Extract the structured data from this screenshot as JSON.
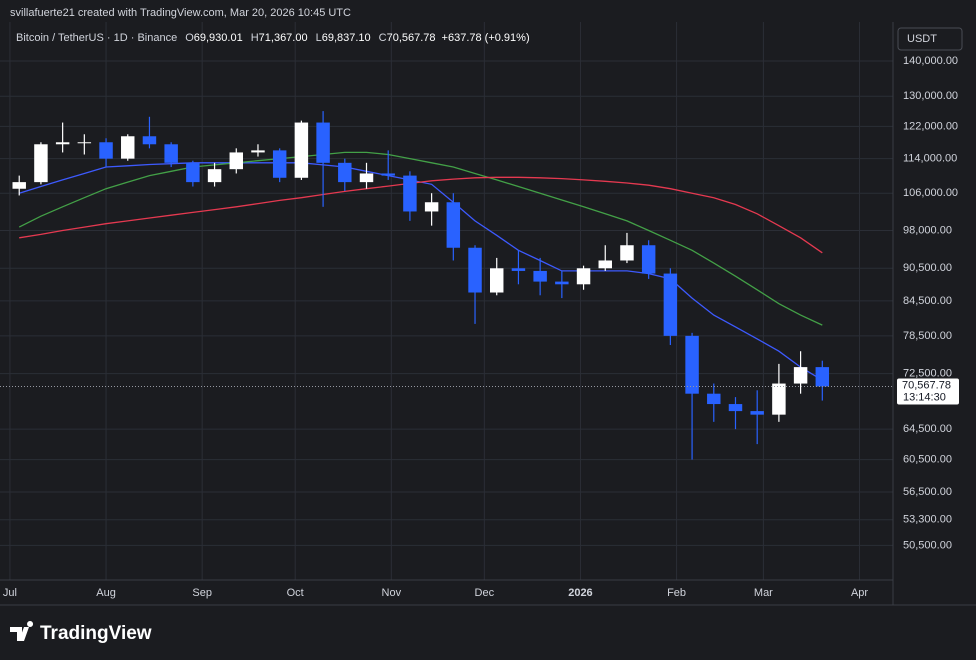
{
  "attribution": "svillafuerte21 created with TradingView.com, Mar 20, 2026 10:45 UTC",
  "brand": "TradingView",
  "chart_data": {
    "type": "candlestick",
    "title": "Bitcoin / TetherUS · 1D · Binance",
    "ohlc_header": [
      {
        "label": "O",
        "value": "69,930.01"
      },
      {
        "label": "H",
        "value": "71,367.00"
      },
      {
        "label": "L",
        "value": "69,837.10"
      },
      {
        "label": "C",
        "value": "70,567.78"
      }
    ],
    "change": "+637.78 (+0.91%)",
    "currency": "USDT",
    "countdown": "13:14:30",
    "last_price": {
      "value": 70567.78,
      "label": "70,567.78"
    },
    "log_scale": true,
    "grid": true,
    "up_color": "#ffffff",
    "down_color": "#2962ff",
    "x": [
      3,
      10,
      17,
      24,
      31,
      38,
      45,
      52,
      59,
      66,
      73,
      80,
      87,
      94,
      101,
      108,
      115,
      122,
      129,
      136,
      143,
      150,
      157,
      164,
      171,
      178,
      185,
      192,
      199,
      206,
      213,
      220,
      227,
      234,
      241,
      248,
      255,
      262
    ],
    "open": [
      107000,
      108500,
      117500,
      118000,
      118000,
      114000,
      119500,
      117500,
      113000,
      108500,
      111500,
      115500,
      116000,
      109500,
      123000,
      113000,
      108500,
      110500,
      110000,
      102000,
      104000,
      94500,
      86000,
      90500,
      90000,
      88000,
      87500,
      90500,
      92000,
      95000,
      89500,
      78500,
      69500,
      68000,
      67000,
      66500,
      71000,
      73500
    ],
    "high": [
      110000,
      118000,
      123000,
      120000,
      119000,
      120000,
      124500,
      118000,
      113500,
      113000,
      116500,
      117500,
      116500,
      123500,
      126000,
      114000,
      113000,
      116000,
      111000,
      106000,
      106000,
      95000,
      92500,
      94000,
      92500,
      90000,
      91000,
      95000,
      97500,
      96000,
      90500,
      79000,
      71000,
      69000,
      70000,
      74000,
      76000,
      74500
    ],
    "low": [
      105500,
      108000,
      115500,
      115000,
      112000,
      113500,
      116500,
      112000,
      107500,
      107500,
      110500,
      114500,
      108500,
      109000,
      103000,
      106500,
      107000,
      109000,
      100000,
      99000,
      92000,
      80500,
      85500,
      87500,
      85500,
      85000,
      86500,
      90000,
      91500,
      88500,
      77000,
      60500,
      65500,
      64500,
      62500,
      65500,
      69500,
      68500
    ],
    "close": [
      108500,
      117500,
      118000,
      118000,
      114000,
      119500,
      117500,
      113000,
      108500,
      111500,
      115500,
      116000,
      109500,
      123000,
      113000,
      108500,
      110500,
      110000,
      102000,
      104000,
      94500,
      86000,
      90500,
      90000,
      88000,
      87500,
      90500,
      92000,
      95000,
      89500,
      78500,
      69500,
      68000,
      67000,
      66500,
      71000,
      73500,
      70567.78
    ],
    "moving_averages": [
      {
        "color": "#3d5afe",
        "values": [
          106000,
          107500,
          109000,
          110500,
          112000,
          112300,
          112600,
          112800,
          113000,
          113000,
          113000,
          113000,
          113000,
          113000,
          112500,
          112000,
          111000,
          110000,
          109000,
          108000,
          104000,
          100000,
          97000,
          94000,
          92000,
          90000,
          90000,
          90000,
          90000,
          89500,
          88500,
          85000,
          82000,
          80000,
          78000,
          76000,
          73500,
          71500
        ]
      },
      {
        "color": "#43a047",
        "values": [
          98700,
          101000,
          103000,
          105000,
          107000,
          108500,
          110000,
          111000,
          112000,
          112500,
          113000,
          113500,
          114000,
          114500,
          115000,
          115500,
          115500,
          115000,
          114000,
          113000,
          112000,
          110500,
          109000,
          107500,
          106000,
          104500,
          103000,
          101500,
          100000,
          98000,
          96000,
          94000,
          91500,
          89000,
          86500,
          84000,
          82000,
          80300
        ]
      },
      {
        "color": "#e53950",
        "values": [
          96500,
          97200,
          98000,
          98700,
          99400,
          100000,
          100600,
          101200,
          101800,
          102400,
          103000,
          103700,
          104400,
          105000,
          105700,
          106400,
          107000,
          107600,
          108200,
          108800,
          109200,
          109500,
          109600,
          109600,
          109500,
          109300,
          109000,
          108700,
          108300,
          107800,
          107000,
          106000,
          105000,
          103500,
          101500,
          99000,
          96500,
          93500
        ]
      }
    ],
    "xlim": [
      -3.2,
      284.8
    ],
    "xticks": [
      {
        "value": 0,
        "label": "Jul"
      },
      {
        "value": 31,
        "label": "Aug"
      },
      {
        "value": 62,
        "label": "Sep"
      },
      {
        "value": 92,
        "label": "Oct"
      },
      {
        "value": 123,
        "label": "Nov"
      },
      {
        "value": 153,
        "label": "Dec"
      },
      {
        "value": 184,
        "label": "2026"
      },
      {
        "value": 215,
        "label": "Feb"
      },
      {
        "value": 243,
        "label": "Mar"
      },
      {
        "value": 274,
        "label": "Apr"
      }
    ],
    "ylim": [
      46950,
      152000
    ],
    "yticks": [
      {
        "value": 140000,
        "label": "140,000.00"
      },
      {
        "value": 130000,
        "label": "130,000.00"
      },
      {
        "value": 122000,
        "label": "122,000.00"
      },
      {
        "value": 114000,
        "label": "114,000.00"
      },
      {
        "value": 106000,
        "label": "106,000.00"
      },
      {
        "value": 98000,
        "label": "98,000.00"
      },
      {
        "value": 90500,
        "label": "90,500.00"
      },
      {
        "value": 84500,
        "label": "84,500.00"
      },
      {
        "value": 78500,
        "label": "78,500.00"
      },
      {
        "value": 72500,
        "label": "72,500.00"
      },
      {
        "value": 64500,
        "label": "64,500.00"
      },
      {
        "value": 60500,
        "label": "60,500.00"
      },
      {
        "value": 56500,
        "label": "56,500.00"
      },
      {
        "value": 53300,
        "label": "53,300.00"
      },
      {
        "value": 50500,
        "label": "50,500.00"
      }
    ]
  }
}
